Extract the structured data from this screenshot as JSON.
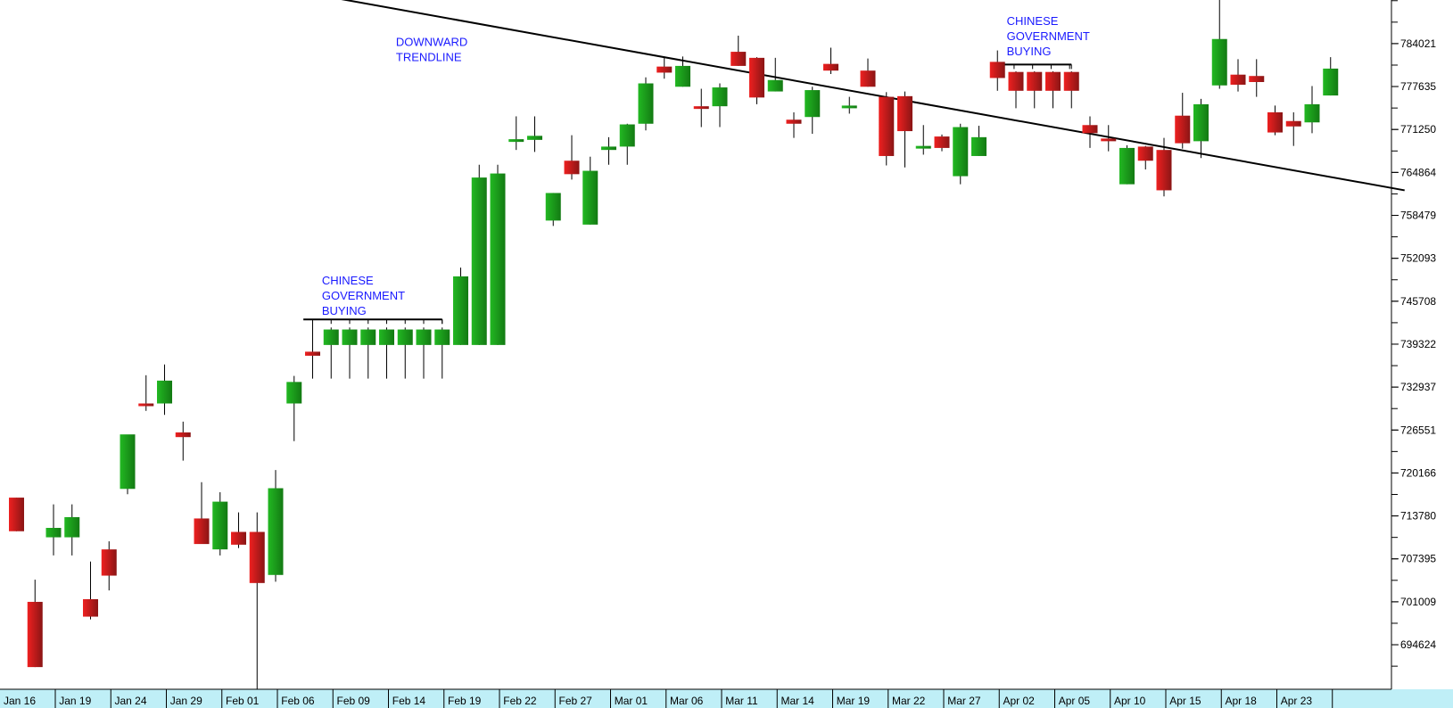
{
  "chart_data": {
    "type": "candlestick",
    "colors": {
      "up": "#1aa31a",
      "down": "#e01b1b",
      "axis_band": "#bfeff7",
      "annotation": "#1a1aff",
      "trendline": "#000000"
    },
    "ylim": [
      688000,
      790500
    ],
    "y_ticks": [
      694624,
      701009,
      707395,
      713780,
      720166,
      726551,
      732937,
      739322,
      745708,
      752093,
      758479,
      764864,
      771250,
      777635,
      784021
    ],
    "x_labels": [
      "Jan 16",
      "Jan 19",
      "Jan 24",
      "Jan 29",
      "Feb 01",
      "Feb 06",
      "Feb 09",
      "Feb 14",
      "Feb 19",
      "Feb 22",
      "Feb 27",
      "Mar 01",
      "Mar 06",
      "Mar 11",
      "Mar 14",
      "Mar 19",
      "Mar 22",
      "Mar 27",
      "Apr 02",
      "Apr 05",
      "Apr 10",
      "Apr 15",
      "Apr 18",
      "Apr 23"
    ],
    "candles": [
      {
        "o": 716500,
        "h": 716500,
        "l": 711500,
        "c": 711500
      },
      {
        "o": 701000,
        "h": 704300,
        "l": 691300,
        "c": 691300
      },
      {
        "o": 710600,
        "h": 715500,
        "l": 707900,
        "c": 712000
      },
      {
        "o": 710600,
        "h": 715500,
        "l": 707900,
        "c": 713600
      },
      {
        "o": 701400,
        "h": 707000,
        "l": 698400,
        "c": 698800
      },
      {
        "o": 708800,
        "h": 710000,
        "l": 702700,
        "c": 704900
      },
      {
        "o": 717800,
        "h": 725100,
        "l": 717000,
        "c": 725900
      },
      {
        "o": 730500,
        "h": 734700,
        "l": 729400,
        "c": 730200
      },
      {
        "o": 730500,
        "h": 736300,
        "l": 728800,
        "c": 733900
      },
      {
        "o": 726200,
        "h": 727800,
        "l": 722000,
        "c": 725500
      },
      {
        "o": 713400,
        "h": 718800,
        "l": 710300,
        "c": 709600
      },
      {
        "o": 708800,
        "h": 717300,
        "l": 707900,
        "c": 715900
      },
      {
        "o": 711400,
        "h": 714300,
        "l": 709000,
        "c": 709500
      },
      {
        "o": 711400,
        "h": 714300,
        "l": 686700,
        "c": 703800
      },
      {
        "o": 705000,
        "h": 720600,
        "l": 704000,
        "c": 717900
      },
      {
        "o": 730500,
        "h": 734600,
        "l": 724900,
        "c": 733700
      },
      {
        "o": 738200,
        "h": 742600,
        "l": 734200,
        "c": 737600
      },
      {
        "o": 739200,
        "h": 741800,
        "l": 734200,
        "c": 741500
      },
      {
        "o": 739200,
        "h": 741800,
        "l": 734200,
        "c": 741500
      },
      {
        "o": 739200,
        "h": 741800,
        "l": 734200,
        "c": 741500
      },
      {
        "o": 739200,
        "h": 741800,
        "l": 734200,
        "c": 741500
      },
      {
        "o": 739200,
        "h": 741800,
        "l": 734200,
        "c": 741500
      },
      {
        "o": 739200,
        "h": 741800,
        "l": 734200,
        "c": 741500
      },
      {
        "o": 739200,
        "h": 741800,
        "l": 734200,
        "c": 741500
      },
      {
        "o": 739200,
        "h": 750700,
        "l": 739200,
        "c": 749400
      },
      {
        "o": 739200,
        "h": 766000,
        "l": 739200,
        "c": 764100
      },
      {
        "o": 739200,
        "h": 766000,
        "l": 739200,
        "c": 764700
      },
      {
        "o": 769400,
        "h": 773200,
        "l": 768200,
        "c": 769800
      },
      {
        "o": 769700,
        "h": 773200,
        "l": 767900,
        "c": 770300
      },
      {
        "o": 757700,
        "h": 761800,
        "l": 756900,
        "c": 761800
      },
      {
        "o": 766600,
        "h": 770400,
        "l": 763800,
        "c": 764600
      },
      {
        "o": 757100,
        "h": 767200,
        "l": 757100,
        "c": 765100
      },
      {
        "o": 768200,
        "h": 770100,
        "l": 766000,
        "c": 768700
      },
      {
        "o": 768700,
        "h": 772100,
        "l": 766000,
        "c": 772000
      },
      {
        "o": 772100,
        "h": 779000,
        "l": 771100,
        "c": 778100
      },
      {
        "o": 780600,
        "h": 782000,
        "l": 778800,
        "c": 779700
      },
      {
        "o": 777600,
        "h": 782100,
        "l": 777600,
        "c": 780700
      },
      {
        "o": 774700,
        "h": 777300,
        "l": 771600,
        "c": 774500
      },
      {
        "o": 774700,
        "h": 778100,
        "l": 771600,
        "c": 777500
      },
      {
        "o": 782800,
        "h": 785200,
        "l": 780700,
        "c": 780700
      },
      {
        "o": 781900,
        "h": 782000,
        "l": 775000,
        "c": 776000
      },
      {
        "o": 776900,
        "h": 781900,
        "l": 776900,
        "c": 778600
      },
      {
        "o": 772700,
        "h": 773800,
        "l": 770000,
        "c": 772100
      },
      {
        "o": 773100,
        "h": 777600,
        "l": 770600,
        "c": 777100
      },
      {
        "o": 781000,
        "h": 783400,
        "l": 779500,
        "c": 780000
      },
      {
        "o": 774800,
        "h": 776100,
        "l": 773600,
        "c": 774800
      },
      {
        "o": 780000,
        "h": 781800,
        "l": 777600,
        "c": 777600
      },
      {
        "o": 776100,
        "h": 776800,
        "l": 765900,
        "c": 767300
      },
      {
        "o": 776200,
        "h": 776900,
        "l": 765600,
        "c": 771000
      },
      {
        "o": 768800,
        "h": 771900,
        "l": 767500,
        "c": 768800
      },
      {
        "o": 770200,
        "h": 770500,
        "l": 768000,
        "c": 768500
      },
      {
        "o": 764300,
        "h": 772100,
        "l": 763100,
        "c": 771600
      },
      {
        "o": 767300,
        "h": 771800,
        "l": 767300,
        "c": 770100
      },
      {
        "o": 781300,
        "h": 783000,
        "l": 777000,
        "c": 778900
      },
      {
        "o": 779800,
        "h": 779900,
        "l": 774400,
        "c": 777000
      },
      {
        "o": 779800,
        "h": 779900,
        "l": 774400,
        "c": 777000
      },
      {
        "o": 779800,
        "h": 779900,
        "l": 774400,
        "c": 777000
      },
      {
        "o": 779800,
        "h": 779900,
        "l": 774400,
        "c": 777000
      },
      {
        "o": 771900,
        "h": 773200,
        "l": 768500,
        "c": 770700
      },
      {
        "o": 769900,
        "h": 771900,
        "l": 768000,
        "c": 769500
      },
      {
        "o": 763100,
        "h": 768900,
        "l": 763100,
        "c": 768500
      },
      {
        "o": 768700,
        "h": 768800,
        "l": 765300,
        "c": 766600
      },
      {
        "o": 768200,
        "h": 770000,
        "l": 761300,
        "c": 762200
      },
      {
        "o": 773300,
        "h": 776700,
        "l": 768400,
        "c": 769200
      },
      {
        "o": 769500,
        "h": 775800,
        "l": 767000,
        "c": 775000
      },
      {
        "o": 777800,
        "h": 791000,
        "l": 777300,
        "c": 784700
      },
      {
        "o": 779400,
        "h": 781700,
        "l": 776900,
        "c": 777900
      },
      {
        "o": 779200,
        "h": 781700,
        "l": 776100,
        "c": 778300
      },
      {
        "o": 773800,
        "h": 774800,
        "l": 770400,
        "c": 770800
      },
      {
        "o": 772500,
        "h": 773800,
        "l": 768800,
        "c": 771700
      },
      {
        "o": 772300,
        "h": 777700,
        "l": 770700,
        "c": 775000
      },
      {
        "o": 776300,
        "h": 782000,
        "l": 776300,
        "c": 780300
      }
    ],
    "annotations": [
      {
        "lines": [
          "DOWNWARD",
          "TRENDLINE"
        ],
        "x_index": 20.5,
        "y": 783700
      },
      {
        "lines": [
          "CHINESE",
          "GOVERNMENT",
          "BUYING"
        ],
        "x_index": 16.5,
        "y": 748200
      },
      {
        "lines": [
          "CHINESE",
          "GOVERNMENT",
          "BUYING"
        ],
        "x_index": 53.5,
        "y": 786800
      }
    ],
    "brackets": [
      {
        "from_index": 15.5,
        "to_index": 23,
        "y": 743000
      },
      {
        "from_index": 53.4,
        "to_index": 57,
        "y": 780900
      }
    ],
    "trendline": {
      "x_index_start": 16.8,
      "y_start": 791000,
      "x_index_end": 75,
      "y_end": 762200
    }
  }
}
